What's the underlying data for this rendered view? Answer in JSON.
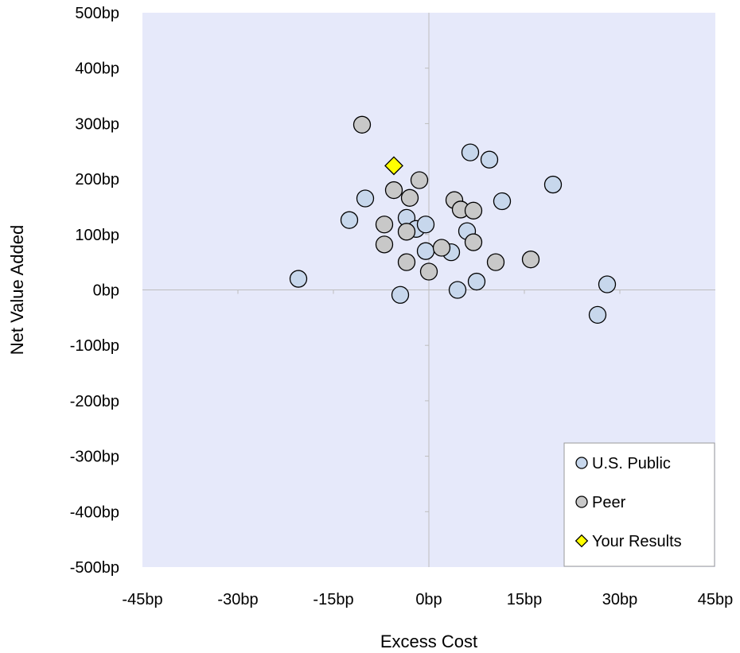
{
  "chart_data": {
    "type": "scatter",
    "xlabel": "Excess Cost",
    "ylabel": "Net Value Added",
    "xlim": [
      -45,
      45
    ],
    "ylim": [
      -500,
      500
    ],
    "x_ticks": [
      -45,
      -30,
      -15,
      0,
      15,
      30,
      45
    ],
    "y_ticks": [
      500,
      400,
      300,
      200,
      100,
      0,
      -100,
      -200,
      -300,
      -400,
      -500
    ],
    "x_tick_labels": [
      "-45bp",
      "-30bp",
      "-15bp",
      "0bp",
      "15bp",
      "30bp",
      "45bp"
    ],
    "y_tick_labels": [
      "500bp",
      "400bp",
      "300bp",
      "200bp",
      "100bp",
      "0bp",
      "-100bp",
      "-200bp",
      "-300bp",
      "-400bp",
      "-500bp"
    ],
    "x_unit": "bp",
    "y_unit": "bp",
    "grid": false,
    "legend_position": "bottom-right",
    "plot_background": "#e6e9fa",
    "series": [
      {
        "name": "U.S. Public",
        "marker": "circle",
        "color": "#c7d7ec",
        "points": [
          {
            "x": -20.5,
            "y": 20
          },
          {
            "x": -12.5,
            "y": 126
          },
          {
            "x": -10,
            "y": 165
          },
          {
            "x": -4.5,
            "y": -9
          },
          {
            "x": -3.5,
            "y": 130
          },
          {
            "x": -2,
            "y": 110
          },
          {
            "x": -0.5,
            "y": 118
          },
          {
            "x": -0.5,
            "y": 70
          },
          {
            "x": 3.5,
            "y": 68
          },
          {
            "x": 4.5,
            "y": 0
          },
          {
            "x": 6,
            "y": 106
          },
          {
            "x": 6.5,
            "y": 248
          },
          {
            "x": 7.5,
            "y": 15
          },
          {
            "x": 9.5,
            "y": 235
          },
          {
            "x": 11.5,
            "y": 160
          },
          {
            "x": 19.5,
            "y": 190
          },
          {
            "x": 26.5,
            "y": -45
          },
          {
            "x": 28,
            "y": 10
          }
        ]
      },
      {
        "name": "Peer",
        "marker": "circle",
        "color": "#c8c8c8",
        "points": [
          {
            "x": -10.5,
            "y": 298
          },
          {
            "x": -7,
            "y": 118
          },
          {
            "x": -7,
            "y": 82
          },
          {
            "x": -5.5,
            "y": 180
          },
          {
            "x": -3.5,
            "y": 105
          },
          {
            "x": -3.5,
            "y": 50
          },
          {
            "x": -3,
            "y": 166
          },
          {
            "x": -1.5,
            "y": 198
          },
          {
            "x": 0,
            "y": 33
          },
          {
            "x": 2,
            "y": 76
          },
          {
            "x": 4,
            "y": 162
          },
          {
            "x": 5,
            "y": 145
          },
          {
            "x": 7,
            "y": 143
          },
          {
            "x": 7,
            "y": 86
          },
          {
            "x": 10.5,
            "y": 50
          },
          {
            "x": 16,
            "y": 55
          }
        ]
      },
      {
        "name": "Your Results",
        "marker": "diamond",
        "color": "#ffff00",
        "points": [
          {
            "x": -5.5,
            "y": 224
          }
        ]
      }
    ]
  }
}
